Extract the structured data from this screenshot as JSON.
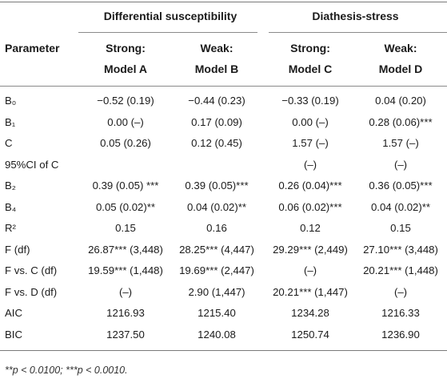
{
  "groups": {
    "differential": "Differential susceptibility",
    "diathesis": "Diathesis-stress"
  },
  "columns": {
    "parameter": "Parameter",
    "a_line1": "Strong:",
    "a_line2": "Model A",
    "b_line1": "Weak:",
    "b_line2": "Model B",
    "c_line1": "Strong:",
    "c_line2": "Model C",
    "d_line1": "Weak:",
    "d_line2": "Model D"
  },
  "rows": [
    {
      "parameter": "B₀",
      "a": "−0.52 (0.19)",
      "b": "−0.44 (0.23)",
      "c": "−0.33 (0.19)",
      "d": "0.04 (0.20)"
    },
    {
      "parameter": "B₁",
      "a": "0.00 (–)",
      "b": "0.17 (0.09)",
      "c": "0.00 (–)",
      "d": "0.28 (0.06)***"
    },
    {
      "parameter": "C",
      "a": "0.05 (0.26)",
      "b": "0.12 (0.45)",
      "c": "1.57 (–)",
      "d": "1.57 (–)"
    },
    {
      "parameter": "95%CI of C",
      "a": "",
      "b": "",
      "c": "(–)",
      "d": "(–)"
    },
    {
      "parameter": "B₂",
      "a": "0.39 (0.05) ***",
      "b": "0.39 (0.05)***",
      "c": "0.26 (0.04)***",
      "d": "0.36 (0.05)***"
    },
    {
      "parameter": "B₄",
      "a": "0.05 (0.02)**",
      "b": "0.04 (0.02)**",
      "c": "0.06 (0.02)***",
      "d": "0.04 (0.02)**"
    },
    {
      "parameter": "R²",
      "a": "0.15",
      "b": "0.16",
      "c": "0.12",
      "d": "0.15"
    },
    {
      "parameter": "F (df)",
      "a": "26.87*** (3,448)",
      "b": "28.25*** (4,447)",
      "c": "29.29*** (2,449)",
      "d": "27.10*** (3,448)"
    },
    {
      "parameter": "F vs. C (df)",
      "a": "19.59*** (1,448)",
      "b": "19.69*** (2,447)",
      "c": "(–)",
      "d": "20.21*** (1,448)"
    },
    {
      "parameter": "F vs. D (df)",
      "a": "(–)",
      "b": "2.90 (1,447)",
      "c": "20.21*** (1,447)",
      "d": "(–)"
    },
    {
      "parameter": "AIC",
      "a": "1216.93",
      "b": "1215.40",
      "c": "1234.28",
      "d": "1216.33"
    },
    {
      "parameter": "BIC",
      "a": "1237.50",
      "b": "1240.08",
      "c": "1250.74",
      "d": "1236.90"
    }
  ],
  "footnote": "**p < 0.0100; ***p < 0.0010."
}
